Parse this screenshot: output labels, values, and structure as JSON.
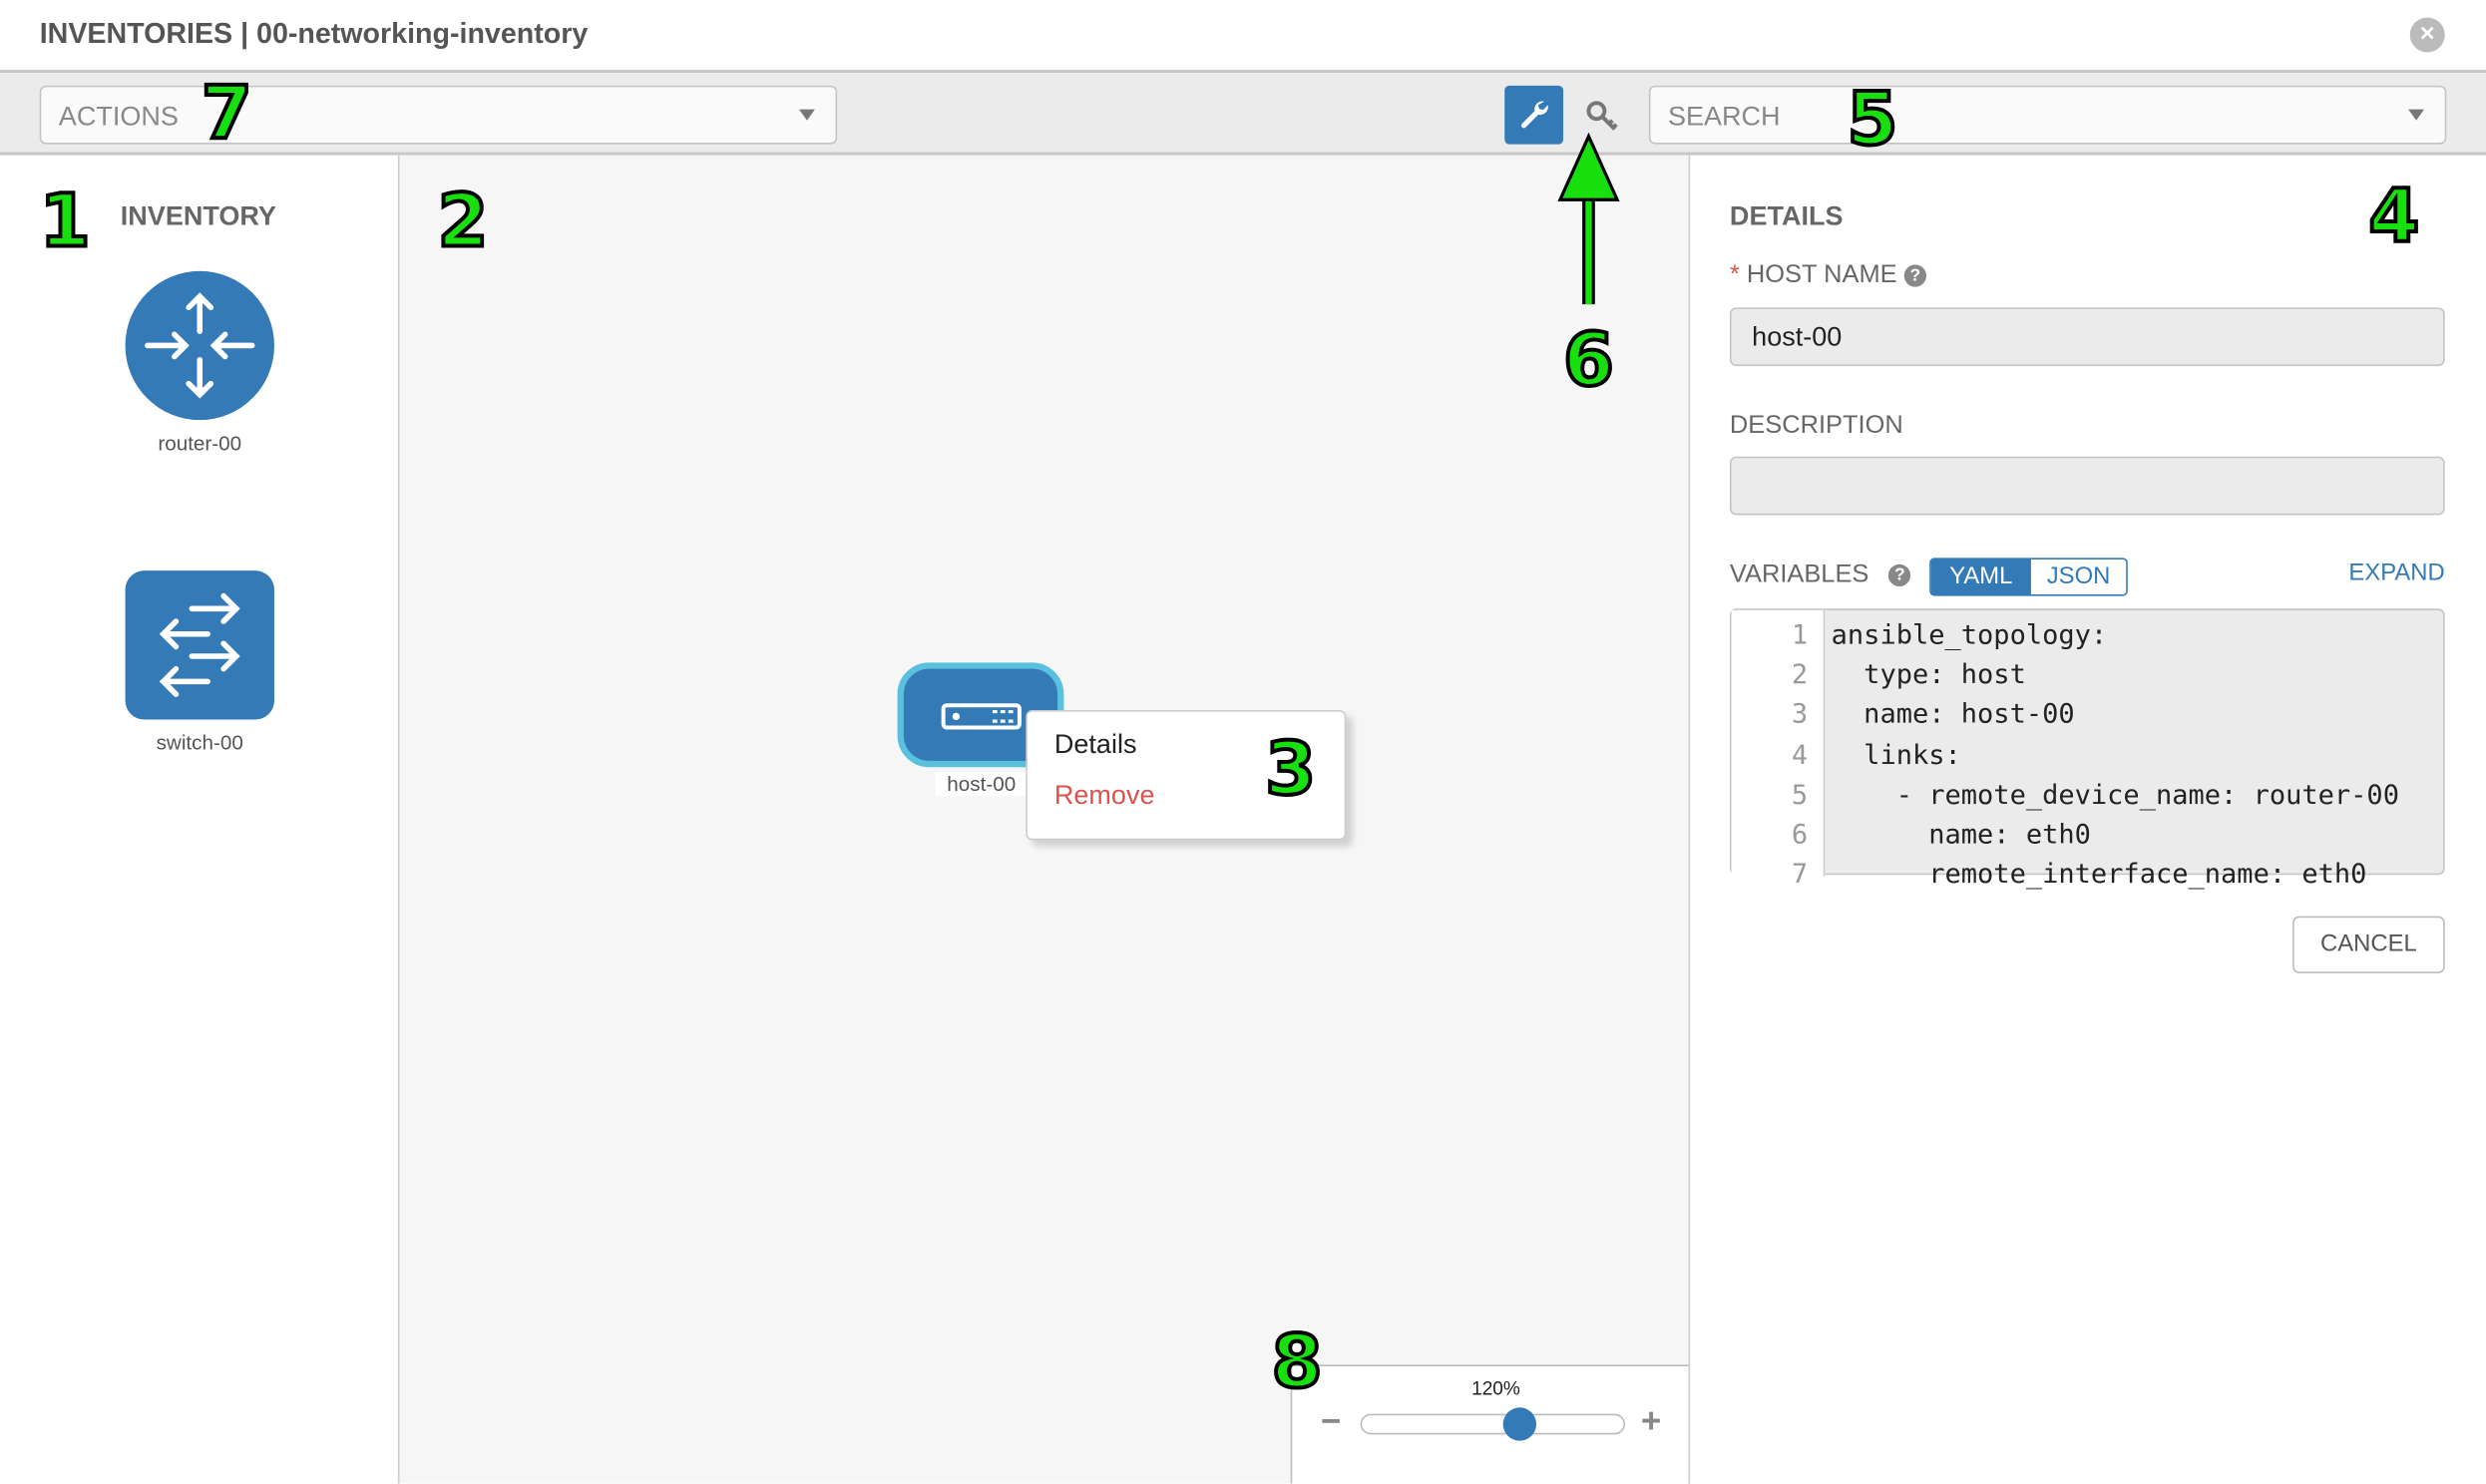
{
  "header": {
    "title": "INVENTORIES | 00-networking-inventory",
    "close_icon": "close-circle-icon"
  },
  "toolbar": {
    "actions_placeholder": "ACTIONS",
    "search_placeholder": "SEARCH",
    "mode_buttons": [
      {
        "icon": "wrench-icon",
        "active": true
      },
      {
        "icon": "key-icon",
        "active": false
      }
    ]
  },
  "inventory": {
    "title": "INVENTORY",
    "items": [
      {
        "label": "router-00",
        "icon": "router-icon"
      },
      {
        "label": "switch-00",
        "icon": "switch-icon"
      }
    ]
  },
  "canvas": {
    "node": {
      "label": "host-00",
      "icon": "host-icon"
    },
    "context_menu": {
      "items": [
        {
          "label": "Details"
        },
        {
          "label": "Remove"
        }
      ]
    },
    "zoom": {
      "label": "120%",
      "value_percent": 120,
      "minus": "−",
      "plus": "+"
    }
  },
  "details": {
    "title": "DETAILS",
    "required_mark": "*",
    "host_name_label": "HOST NAME",
    "host_name_value": "host-00",
    "description_label": "DESCRIPTION",
    "description_value": "",
    "variables_label": "VARIABLES",
    "format_tabs": [
      {
        "label": "YAML",
        "active": true
      },
      {
        "label": "JSON",
        "active": false
      }
    ],
    "expand_label": "EXPAND",
    "code_lines": [
      {
        "n": "1",
        "text": "ansible_topology:"
      },
      {
        "n": "2",
        "text": "  type: host"
      },
      {
        "n": "3",
        "text": "  name: host-00"
      },
      {
        "n": "4",
        "text": "  links:"
      },
      {
        "n": "5",
        "text": "    - remote_device_name: router-00"
      },
      {
        "n": "6",
        "text": "      name: eth0"
      },
      {
        "n": "7",
        "text": "      remote_interface_name: eth0"
      }
    ],
    "cancel_label": "CANCEL"
  },
  "annotations": [
    "1",
    "2",
    "3",
    "4",
    "5",
    "6",
    "7",
    "8"
  ],
  "colors": {
    "accent": "#337ab7",
    "danger": "#d9534f",
    "node_border": "#5bc0de",
    "annotation": "#18e00f"
  }
}
